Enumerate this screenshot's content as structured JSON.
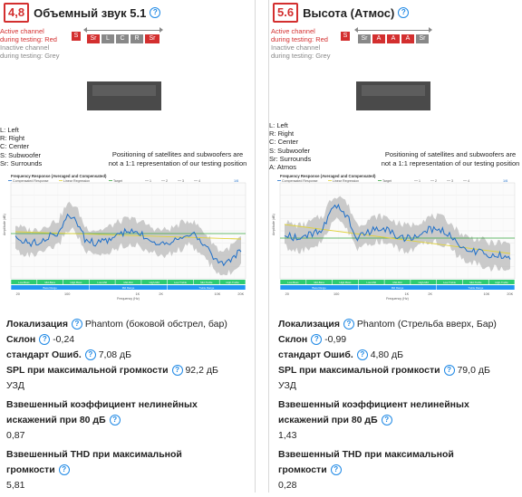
{
  "panels": [
    {
      "score": "4,8",
      "title": "Объемный звук 5.1",
      "legend": {
        "active_line1": "Active channel",
        "active_line2": "during testing: Red",
        "inactive_line1": "Inactive channel",
        "inactive_line2": "during testing: Grey"
      },
      "speakers": {
        "sub": "S",
        "row": [
          "Sr",
          "L",
          "C",
          "R",
          "Sr"
        ]
      },
      "keys": [
        "L: Left",
        "R: Right",
        "C: Center",
        "S: Subwoofer",
        "Sr: Surrounds"
      ],
      "note": [
        "Positioning of satellites and subwoofers are",
        "not a 1:1 representation of our testing position"
      ],
      "chart": {
        "title": "Frequency Response (Averaged and Compensated)",
        "legend": [
          "Compensated Response",
          "Linear Regression",
          "Target",
          "1",
          "2",
          "3",
          "4"
        ],
        "zoom": "1/6",
        "ylabel": "Amplitude (dB)",
        "xlabel": "Frequency (Hz)",
        "xticks": [
          "20",
          "100",
          "1K",
          "2K",
          "10K",
          "20K"
        ],
        "bands_top": [
          "Low-Bass",
          "Mid-Bass",
          "High-Bass",
          "Low-Mid",
          "Mid-Mid",
          "High-Mid",
          "Low-Treble",
          "Mid-Treble",
          "High-Treble"
        ],
        "bands_bottom": [
          "Bass Range",
          "Mid Range",
          "Treble Range"
        ]
      },
      "metrics": {
        "loc_label": "Локализация",
        "loc_value": "Phantom (боковой обстрел, бар)",
        "slope_label": "Склон",
        "slope_value": "-0,24",
        "std_label": "стандарт Ошиб.",
        "std_value": "7,08 дБ",
        "spl_label": "SPL при максимальной громкости",
        "spl_value": "92,2 дБ",
        "spl_unit": "УЗД",
        "thd80_label1": "Взвешенный коэффициент нелинейных",
        "thd80_label2": "искажений при 80 дБ",
        "thd80_value": "0,87",
        "thdmax_label1": "Взвешенный THD при максимальной",
        "thdmax_label2": "громкости",
        "thdmax_value": "5,81"
      }
    },
    {
      "score": "5.6",
      "title": "Высота (Атмос)",
      "legend": {
        "active_line1": "Active channel",
        "active_line2": "during testing: Red",
        "inactive_line1": "Inactive channel",
        "inactive_line2": "during testing: Grey"
      },
      "speakers": {
        "sub": "S",
        "row": [
          "Sr",
          "A",
          "A",
          "A",
          "Sr"
        ]
      },
      "keys": [
        "L: Left",
        "R: Right",
        "C: Center",
        "S: Subwoofer",
        "Sr: Surrounds",
        "A: Atmos"
      ],
      "note": [
        "Positioning of satellites and subwoofers are",
        "not a 1:1 representation of our testing position"
      ],
      "chart": {
        "title": "Frequency Response (Averaged and Compensated)",
        "legend": [
          "Compensated Response",
          "Linear Regression",
          "Target",
          "1",
          "2",
          "3",
          "4"
        ],
        "zoom": "1/6",
        "ylabel": "Amplitude (dB)",
        "xlabel": "Frequency (Hz)",
        "xticks": [
          "20",
          "100",
          "1K",
          "2K",
          "10K",
          "20K"
        ],
        "bands_top": [
          "Low-Bass",
          "Mid-Bass",
          "High-Bass",
          "Low-Mid",
          "Mid-Mid",
          "High-Mid",
          "Low-Treble",
          "Mid-Treble",
          "High-Treble"
        ],
        "bands_bottom": [
          "Bass Range",
          "Mid Range",
          "Treble Range"
        ]
      },
      "metrics": {
        "loc_label": "Локализация",
        "loc_value": "Phantom (Стрельба вверх, Бар)",
        "slope_label": "Склон",
        "slope_value": "-0,99",
        "std_label": "стандарт Ошиб.",
        "std_value": "4,80 дБ",
        "spl_label": "SPL при максимальной громкости",
        "spl_value": "79,0 дБ",
        "spl_unit": "УЗД",
        "thd80_label1": "Взвешенный коэффициент нелинейных",
        "thd80_label2": "искажений при 80 дБ",
        "thd80_value": "1,43",
        "thdmax_label1": "Взвешенный THD при максимальной",
        "thdmax_label2": "громкости",
        "thdmax_value": "0,28"
      }
    }
  ],
  "colors": {
    "score": "#d32f2f",
    "active": "#d32f2f",
    "inactive": "#888888",
    "response": "#1e6fc9",
    "regression": "#e0d23a",
    "target": "#3aa640",
    "band_top": "#2ecc71",
    "band_bottom": "#2196f3",
    "help": "#1e88e5"
  }
}
